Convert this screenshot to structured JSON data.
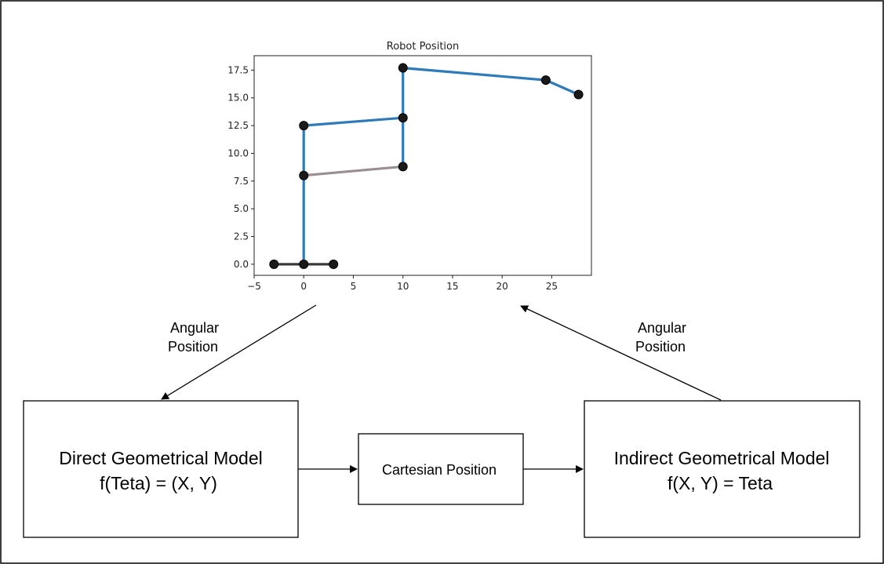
{
  "chart_data": {
    "type": "line",
    "title": "Robot Position",
    "xlabel": "",
    "ylabel": "",
    "xlim": [
      -5,
      29
    ],
    "ylim": [
      -1.0,
      18.8
    ],
    "xticks": [
      -5,
      0,
      5,
      10,
      15,
      20,
      25
    ],
    "xtick_labels": [
      "−5",
      "0",
      "5",
      "10",
      "15",
      "20",
      "25"
    ],
    "yticks": [
      0,
      2.5,
      5,
      7.5,
      10,
      12.5,
      15,
      17.5
    ],
    "ytick_labels": [
      "0.0",
      "2.5",
      "5.0",
      "7.5",
      "10.0",
      "12.5",
      "15.0",
      "17.5"
    ],
    "grid": false,
    "series": [
      {
        "color": "#3a3a3a",
        "points": [
          {
            "x": -3,
            "y": 0
          },
          {
            "x": 0,
            "y": 0
          },
          {
            "x": 3,
            "y": 0
          }
        ]
      },
      {
        "color": "#2f7ab8",
        "points": [
          {
            "x": 0,
            "y": 0
          },
          {
            "x": 0,
            "y": 8.0
          },
          {
            "x": 0,
            "y": 12.5
          },
          {
            "x": 10,
            "y": 13.2
          },
          {
            "x": 10,
            "y": 8.8
          }
        ]
      },
      {
        "color": "#9a8f90",
        "points": [
          {
            "x": 0,
            "y": 8.0
          },
          {
            "x": 10,
            "y": 8.8
          }
        ]
      },
      {
        "color": "#2f7ab8",
        "points": [
          {
            "x": 10,
            "y": 13.2
          },
          {
            "x": 10,
            "y": 17.7
          },
          {
            "x": 24.4,
            "y": 16.6
          },
          {
            "x": 27.7,
            "y": 15.3
          }
        ]
      }
    ],
    "joints": [
      {
        "x": -3,
        "y": 0
      },
      {
        "x": 0,
        "y": 0
      },
      {
        "x": 3,
        "y": 0
      },
      {
        "x": 0,
        "y": 8.0
      },
      {
        "x": 0,
        "y": 12.5
      },
      {
        "x": 10,
        "y": 8.8
      },
      {
        "x": 10,
        "y": 13.2
      },
      {
        "x": 10,
        "y": 17.7
      },
      {
        "x": 24.4,
        "y": 16.6
      },
      {
        "x": 27.7,
        "y": 15.3
      }
    ]
  },
  "diagram": {
    "left_arrow_label": [
      "Angular",
      "Position"
    ],
    "right_arrow_label": [
      "Angular",
      "Position"
    ],
    "direct_model": [
      "Direct Geometrical Model",
      "f(Teta) = (X, Y)"
    ],
    "cartesian": "Cartesian Position",
    "indirect_model": [
      "Indirect Geometrical Model",
      "f(X, Y) = Teta"
    ]
  }
}
